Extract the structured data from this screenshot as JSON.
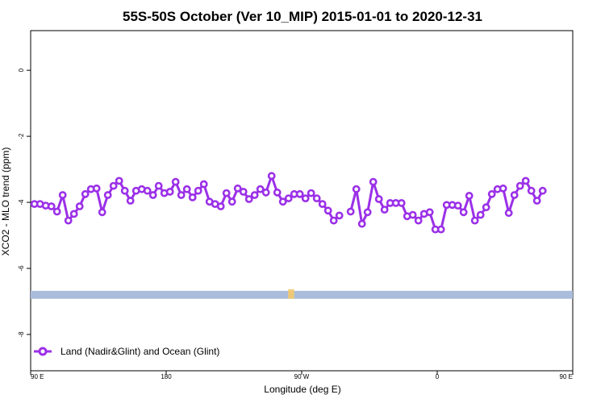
{
  "chart_data": {
    "type": "line",
    "title": "55S-50S October (Ver 10_MIP)   2015-01-01 to 2020-12-31",
    "xlabel": "Longitude (deg E)",
    "ylabel": "XCO2 - MLO trend (ppm)",
    "xlim": [
      90,
      450
    ],
    "ylim": [
      -9.1,
      1.2
    ],
    "x_ticks": [
      {
        "value": 90,
        "label": "90 E"
      },
      {
        "value": 180,
        "label": "180"
      },
      {
        "value": 270,
        "label": "90 W"
      },
      {
        "value": 360,
        "label": "0"
      },
      {
        "value": 450,
        "label": "90 E"
      },
      {
        "value": 540,
        "label": "180"
      }
    ],
    "y_ticks": [
      {
        "value": 0,
        "label": "0"
      },
      {
        "value": -2,
        "label": "-2"
      },
      {
        "value": -4,
        "label": "-4"
      },
      {
        "value": -6,
        "label": "-6"
      },
      {
        "value": -8,
        "label": "-8"
      }
    ],
    "series": [
      {
        "name": "Land (Nadir&Glint) and Ocean (Glint)",
        "color": "#9b30e8",
        "points": [
          [
            92.5,
            -4.05
          ],
          [
            96.25,
            -4.05
          ],
          [
            100,
            -4.1
          ],
          [
            103.75,
            -4.12
          ],
          [
            107.5,
            -4.28
          ],
          [
            111.25,
            -3.78
          ],
          [
            115,
            -4.55
          ],
          [
            118.75,
            -4.35
          ],
          [
            122.5,
            -4.12
          ],
          [
            126.25,
            -3.75
          ],
          [
            130,
            -3.6
          ],
          [
            133.75,
            -3.58
          ],
          [
            137.5,
            -4.3
          ],
          [
            141.25,
            -3.78
          ],
          [
            145,
            -3.5
          ],
          [
            148.75,
            -3.35
          ],
          [
            152.5,
            -3.65
          ],
          [
            156.25,
            -3.95
          ],
          [
            160,
            -3.65
          ],
          [
            163.75,
            -3.6
          ],
          [
            167.5,
            -3.65
          ],
          [
            171.25,
            -3.78
          ],
          [
            175,
            -3.5
          ],
          [
            178.75,
            -3.72
          ],
          [
            182.5,
            -3.68
          ],
          [
            186.25,
            -3.38
          ],
          [
            190,
            -3.78
          ],
          [
            193.75,
            -3.6
          ],
          [
            197.5,
            -3.85
          ],
          [
            201.25,
            -3.65
          ],
          [
            205,
            -3.45
          ],
          [
            208.75,
            -3.98
          ],
          [
            212.5,
            -4.05
          ],
          [
            216.25,
            -4.12
          ],
          [
            220,
            -3.72
          ],
          [
            223.75,
            -3.98
          ],
          [
            227.5,
            -3.58
          ],
          [
            231.25,
            -3.68
          ],
          [
            235,
            -3.9
          ],
          [
            238.75,
            -3.78
          ],
          [
            242.5,
            -3.6
          ],
          [
            246.25,
            -3.7
          ],
          [
            250,
            -3.2
          ],
          [
            253.75,
            -3.7
          ],
          [
            257.5,
            -3.98
          ],
          [
            261.25,
            -3.88
          ],
          [
            265,
            -3.75
          ],
          [
            268.75,
            -3.75
          ],
          [
            272.5,
            -3.88
          ],
          [
            276.25,
            -3.72
          ],
          [
            280,
            -3.88
          ],
          [
            283.75,
            -4.05
          ],
          [
            287.5,
            -4.25
          ],
          [
            291.25,
            -4.55
          ],
          [
            295,
            -4.4
          ],
          null,
          [
            302.5,
            -4.28
          ],
          [
            306.25,
            -3.6
          ],
          [
            310,
            -4.65
          ],
          [
            313.75,
            -4.3
          ],
          [
            317.5,
            -3.38
          ],
          [
            321.25,
            -3.9
          ],
          [
            325,
            -4.22
          ],
          [
            328.75,
            -4.02
          ],
          [
            332.5,
            -4.02
          ],
          [
            336.25,
            -4.02
          ],
          [
            340,
            -4.42
          ],
          [
            343.75,
            -4.38
          ],
          [
            347.5,
            -4.55
          ],
          [
            351.25,
            -4.35
          ],
          [
            355,
            -4.3
          ],
          [
            358.75,
            -4.82
          ],
          [
            362.5,
            -4.82
          ],
          [
            366.25,
            -4.08
          ],
          [
            370,
            -4.08
          ],
          [
            373.75,
            -4.1
          ],
          [
            377.5,
            -4.3
          ],
          [
            381.25,
            -3.8
          ],
          [
            385,
            -4.55
          ],
          [
            388.75,
            -4.38
          ],
          [
            392.5,
            -4.15
          ],
          [
            396.25,
            -3.75
          ],
          [
            400,
            -3.6
          ],
          [
            403.75,
            -3.58
          ],
          [
            407.5,
            -4.32
          ],
          [
            411.25,
            -3.78
          ],
          [
            415,
            -3.5
          ],
          [
            418.75,
            -3.35
          ],
          [
            422.5,
            -3.65
          ],
          [
            426.25,
            -3.95
          ],
          [
            430,
            -3.65
          ]
        ]
      }
    ],
    "coverage_band": {
      "y_top": -6.68,
      "y_bottom": -6.92,
      "color": "#a9bcdb",
      "land_marker_color": "#f5c96b",
      "land_x_range": [
        261,
        265
      ]
    },
    "grid": false,
    "legend": {
      "placement": "bottom-left"
    }
  }
}
